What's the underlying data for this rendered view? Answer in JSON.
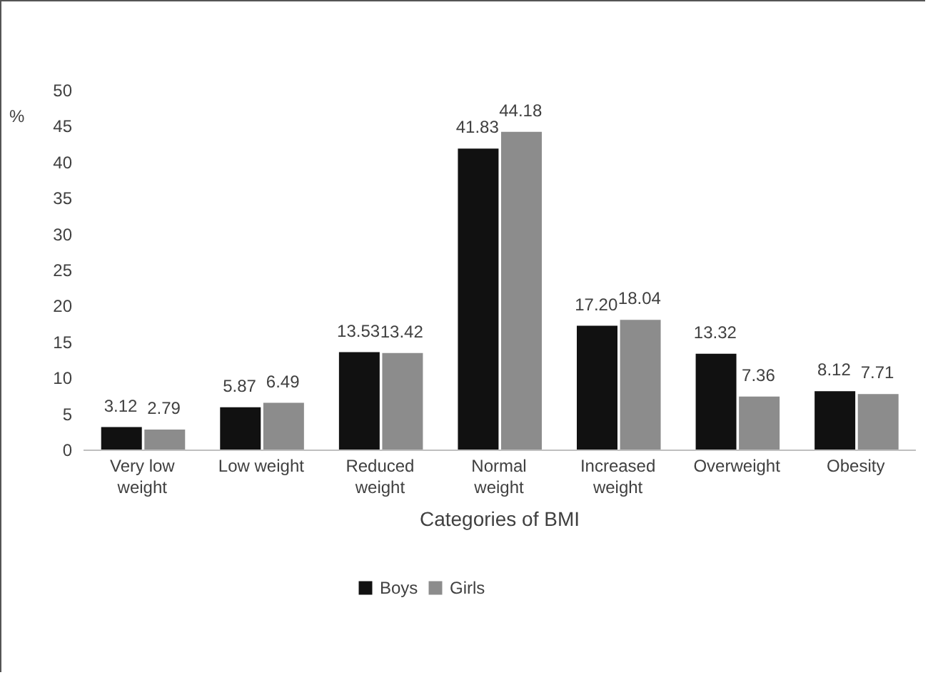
{
  "chart_data": {
    "type": "bar",
    "xlabel": "Categories of BMI",
    "ylabel": "%",
    "categories": [
      "Very low weight",
      "Low weight",
      "Reduced weight",
      "Normal weight",
      "Increased weight",
      "Overweight",
      "Obesity"
    ],
    "series": [
      {
        "name": "Boys",
        "color": "#111111",
        "values": [
          3.12,
          5.87,
          13.53,
          41.83,
          17.2,
          13.32,
          8.12
        ],
        "value_labels": [
          "3.12",
          "5.87",
          "13.53",
          "41.83",
          "17.20",
          "13.32",
          "8.12"
        ]
      },
      {
        "name": "Girls",
        "color": "#8c8c8c",
        "values": [
          2.79,
          6.49,
          13.42,
          44.18,
          18.04,
          7.36,
          7.71
        ],
        "value_labels": [
          "2.79",
          "6.49",
          "13.42",
          "44.18",
          "18.04",
          "7.36",
          "7.71"
        ]
      }
    ],
    "ylim": [
      0,
      50
    ],
    "yticks": [
      0,
      5,
      10,
      15,
      20,
      25,
      30,
      35,
      40,
      45,
      50
    ],
    "grid": false,
    "legend": "bottom"
  }
}
